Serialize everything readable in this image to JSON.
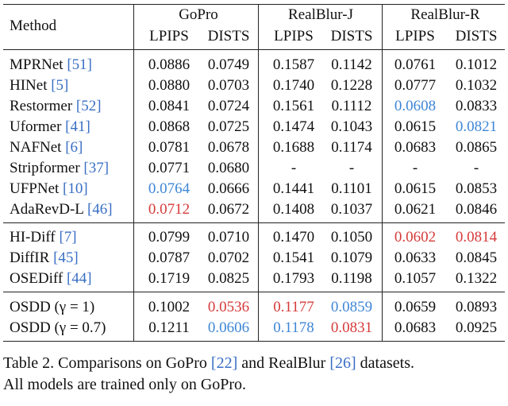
{
  "header": {
    "method": "Method",
    "groups": [
      "GoPro",
      "RealBlur-J",
      "RealBlur-R"
    ],
    "metrics": [
      "LPIPS",
      "DISTS",
      "LPIPS",
      "DISTS",
      "LPIPS",
      "DISTS"
    ]
  },
  "table": {
    "sections": [
      [
        {
          "method": "MPRNet",
          "cite": "[51]",
          "values": [
            "0.0886",
            "0.0749",
            "0.1587",
            "0.1142",
            "0.0761",
            "0.1012"
          ]
        },
        {
          "method": "HINet",
          "cite": "[5]",
          "values": [
            "0.0880",
            "0.0703",
            "0.1740",
            "0.1228",
            "0.0777",
            "0.1032"
          ]
        },
        {
          "method": "Restormer",
          "cite": "[52]",
          "values": [
            "0.0841",
            "0.0724",
            "0.1561",
            "0.1112",
            "0.0608",
            "0.0833"
          ]
        },
        {
          "method": "Uformer",
          "cite": "[41]",
          "values": [
            "0.0868",
            "0.0725",
            "0.1474",
            "0.1043",
            "0.0615",
            "0.0821"
          ]
        },
        {
          "method": "NAFNet",
          "cite": "[6]",
          "values": [
            "0.0781",
            "0.0678",
            "0.1688",
            "0.1174",
            "0.0683",
            "0.0865"
          ]
        },
        {
          "method": "Stripformer",
          "cite": "[37]",
          "values": [
            "0.0771",
            "0.0680",
            "-",
            "-",
            "-",
            "-"
          ]
        },
        {
          "method": "UFPNet",
          "cite": "[10]",
          "values": [
            "0.0764",
            "0.0666",
            "0.1441",
            "0.1101",
            "0.0615",
            "0.0853"
          ]
        },
        {
          "method": "AdaRevD-L",
          "cite": "[46]",
          "values": [
            "0.0712",
            "0.0672",
            "0.1408",
            "0.1037",
            "0.0621",
            "0.0846"
          ]
        }
      ],
      [
        {
          "method": "HI-Diff",
          "cite": "[7]",
          "values": [
            "0.0799",
            "0.0710",
            "0.1470",
            "0.1050",
            "0.0602",
            "0.0814"
          ]
        },
        {
          "method": "DiffIR",
          "cite": "[45]",
          "values": [
            "0.0787",
            "0.0702",
            "0.1541",
            "0.1079",
            "0.0633",
            "0.0845"
          ]
        },
        {
          "method": "OSEDiff",
          "cite": "[44]",
          "values": [
            "0.1719",
            "0.0825",
            "0.1793",
            "0.1198",
            "0.1057",
            "0.1322"
          ]
        }
      ],
      [
        {
          "method": "OSDD (γ = 1)",
          "values": [
            "0.1002",
            "0.0536",
            "0.1177",
            "0.0859",
            "0.0659",
            "0.0893"
          ]
        },
        {
          "method": "OSDD (γ = 0.7)",
          "values": [
            "0.1211",
            "0.0606",
            "0.1178",
            "0.0831",
            "0.0683",
            "0.0925"
          ]
        }
      ]
    ]
  },
  "caption": {
    "lines": [
      [
        "Table 2. Comparisons on GoPro ",
        "[22]",
        " and RealBlur ",
        "[26]",
        " datasets."
      ],
      [
        "All models are trained only on GoPro."
      ]
    ]
  }
}
